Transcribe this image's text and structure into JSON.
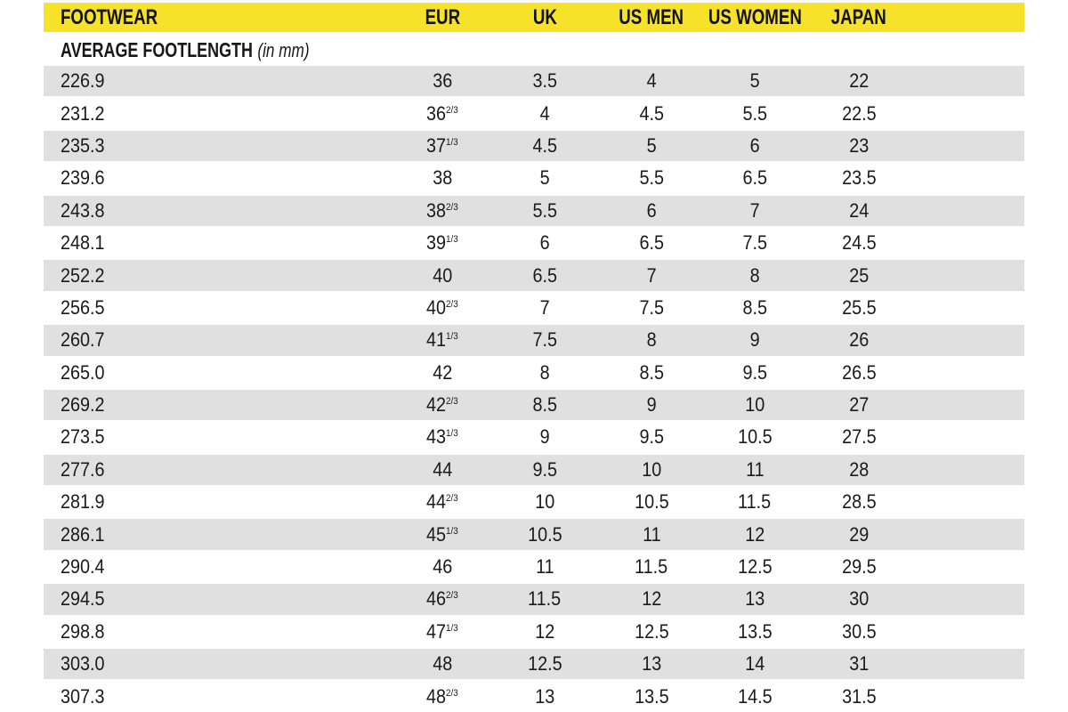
{
  "table": {
    "columns": [
      {
        "key": "footwear",
        "label": "FOOTWEAR"
      },
      {
        "key": "eur",
        "label": "EUR"
      },
      {
        "key": "uk",
        "label": "UK"
      },
      {
        "key": "us-men",
        "label": "US MEN"
      },
      {
        "key": "us-women",
        "label": "US WOMEN"
      },
      {
        "key": "japan",
        "label": "JAPAN"
      }
    ],
    "subheader": {
      "label": "AVERAGE FOOTLENGTH",
      "note": "(in mm)"
    },
    "rows": [
      [
        "226.9",
        "36",
        "3.5",
        "4",
        "5",
        "22"
      ],
      [
        "231.2",
        "36 2/3",
        "4",
        "4.5",
        "5.5",
        "22.5"
      ],
      [
        "235.3",
        "37 1/3",
        "4.5",
        "5",
        "6",
        "23"
      ],
      [
        "239.6",
        "38",
        "5",
        "5.5",
        "6.5",
        "23.5"
      ],
      [
        "243.8",
        "38 2/3",
        "5.5",
        "6",
        "7",
        "24"
      ],
      [
        "248.1",
        "39 1/3",
        "6",
        "6.5",
        "7.5",
        "24.5"
      ],
      [
        "252.2",
        "40",
        "6.5",
        "7",
        "8",
        "25"
      ],
      [
        "256.5",
        "40 2/3",
        "7",
        "7.5",
        "8.5",
        "25.5"
      ],
      [
        "260.7",
        "41 1/3",
        "7.5",
        "8",
        "9",
        "26"
      ],
      [
        "265.0",
        "42",
        "8",
        "8.5",
        "9.5",
        "26.5"
      ],
      [
        "269.2",
        "42 2/3",
        "8.5",
        "9",
        "10",
        "27"
      ],
      [
        "273.5",
        "43 1/3",
        "9",
        "9.5",
        "10.5",
        "27.5"
      ],
      [
        "277.6",
        "44",
        "9.5",
        "10",
        "11",
        "28"
      ],
      [
        "281.9",
        "44 2/3",
        "10",
        "10.5",
        "11.5",
        "28.5"
      ],
      [
        "286.1",
        "45 1/3",
        "10.5",
        "11",
        "12",
        "29"
      ],
      [
        "290.4",
        "46",
        "11",
        "11.5",
        "12.5",
        "29.5"
      ],
      [
        "294.5",
        "46 2/3",
        "11.5",
        "12",
        "13",
        "30"
      ],
      [
        "298.8",
        "47 1/3",
        "12",
        "12.5",
        "13.5",
        "30.5"
      ],
      [
        "303.0",
        "48",
        "12.5",
        "13",
        "14",
        "31"
      ],
      [
        "307.3",
        "48 2/3",
        "13",
        "13.5",
        "14.5",
        "31.5"
      ]
    ]
  },
  "colors": {
    "header_bg": "#F6E229",
    "alt_row_bg": "#E0E0E0",
    "text": "#1A1A1A"
  }
}
